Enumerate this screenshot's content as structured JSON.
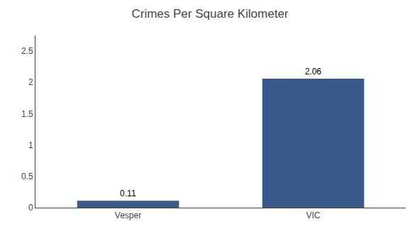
{
  "chart_data": {
    "type": "bar",
    "title": "Crimes Per Square Kilometer",
    "categories": [
      "Vesper",
      "VIC"
    ],
    "values": [
      0.11,
      2.06
    ],
    "color": "#3a5a8c",
    "ylim": [
      0,
      2.75
    ],
    "yticks": [
      0,
      0.5,
      1,
      1.5,
      2,
      2.5
    ],
    "data_labels": true,
    "grid": false
  }
}
